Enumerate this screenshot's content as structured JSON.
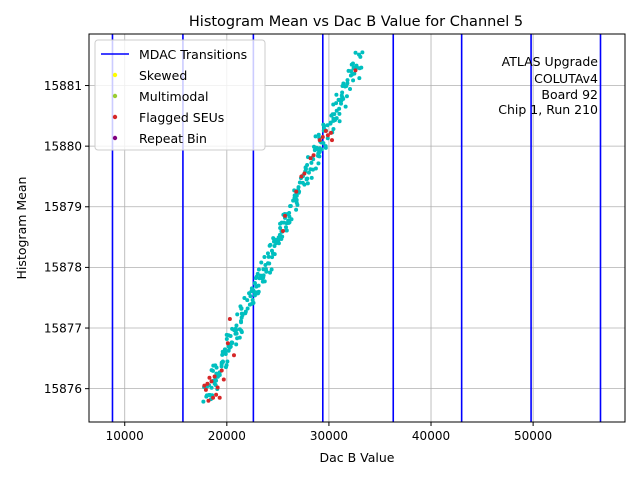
{
  "chart_data": {
    "type": "scatter",
    "title": "Histogram Mean vs Dac B Value for Channel 5",
    "xlabel": "Dac B Value",
    "ylabel": "Histogram Mean",
    "xlim": [
      6500,
      59000
    ],
    "ylim": [
      15875.45,
      15881.85
    ],
    "xticks": [
      10000,
      20000,
      30000,
      40000,
      50000
    ],
    "yticks": [
      15876,
      15877,
      15878,
      15879,
      15880,
      15881
    ],
    "grid": true,
    "legend_position": "upper-left",
    "annotation": [
      "ATLAS Upgrade",
      "COLUTAv4",
      "Board 92",
      "Chip 1, Run 210"
    ],
    "mdac_transitions": [
      8800,
      15700,
      22600,
      29400,
      36300,
      43000,
      49800,
      56600
    ],
    "legend": [
      {
        "label": "MDAC Transitions",
        "kind": "line",
        "color": "#0000ff"
      },
      {
        "label": "Skewed",
        "kind": "dot",
        "color": "#ffff00"
      },
      {
        "label": "Multimodal",
        "kind": "dot",
        "color": "#9acd32"
      },
      {
        "label": "Flagged SEUs",
        "kind": "dot",
        "color": "#d62728"
      },
      {
        "label": "Repeat Bin",
        "kind": "dot",
        "color": "#800080"
      }
    ],
    "series": [
      {
        "name": "Data",
        "color": "#00bfbf",
        "x_start": 18000,
        "x_end": 33000,
        "y_start": 15875.85,
        "y_end": 15881.45,
        "n_points": 300
      },
      {
        "name": "Flagged SEUs",
        "color": "#d62728",
        "points": [
          [
            17800,
            15876.05
          ],
          [
            17950,
            15875.98
          ],
          [
            18100,
            15876.08
          ],
          [
            18200,
            15875.8
          ],
          [
            18300,
            15876.18
          ],
          [
            18500,
            15876.12
          ],
          [
            18650,
            15875.85
          ],
          [
            18800,
            15876.2
          ],
          [
            18950,
            15875.9
          ],
          [
            19100,
            15876.02
          ],
          [
            19300,
            15875.85
          ],
          [
            19500,
            15876.3
          ],
          [
            19700,
            15876.15
          ],
          [
            20100,
            15876.75
          ],
          [
            20300,
            15877.15
          ],
          [
            20700,
            15876.55
          ],
          [
            25500,
            15878.6
          ],
          [
            25700,
            15878.85
          ],
          [
            26800,
            15879.25
          ],
          [
            27300,
            15879.5
          ],
          [
            27600,
            15879.55
          ],
          [
            28200,
            15879.8
          ],
          [
            28500,
            15879.85
          ],
          [
            29100,
            15880.1
          ],
          [
            29400,
            15880.15
          ],
          [
            29700,
            15880.25
          ],
          [
            29900,
            15880.18
          ],
          [
            30200,
            15880.22
          ],
          [
            30300,
            15880.1
          ],
          [
            32600,
            15881.25
          ]
        ]
      }
    ]
  }
}
